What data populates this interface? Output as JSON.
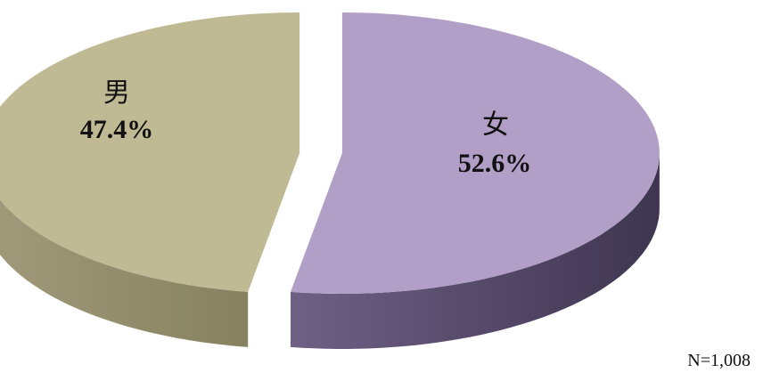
{
  "chart_data": {
    "type": "pie",
    "style": "3d-exploded",
    "slices": [
      {
        "label": "女",
        "value": 52.6,
        "value_label": "52.6%",
        "color": "#b29fc8",
        "side_color": "#564b66"
      },
      {
        "label": "男",
        "value": 47.4,
        "value_label": "47.4%",
        "color": "#c0ba94",
        "side_color": "#8f8a6b"
      }
    ],
    "note": "N=1,008"
  }
}
